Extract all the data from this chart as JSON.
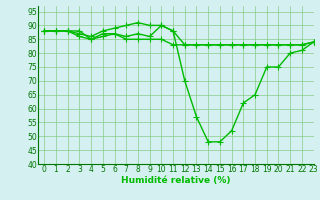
{
  "x": [
    0,
    1,
    2,
    3,
    4,
    5,
    6,
    7,
    8,
    9,
    10,
    11,
    12,
    13,
    14,
    15,
    16,
    17,
    18,
    19,
    20,
    21,
    22,
    23
  ],
  "line1": [
    88,
    88,
    88,
    88,
    85,
    87,
    87,
    85,
    85,
    85,
    85,
    83,
    83,
    83,
    83,
    83,
    83,
    83,
    83,
    83,
    83,
    83,
    83,
    84
  ],
  "line2": [
    88,
    88,
    88,
    87,
    86,
    88,
    89,
    90,
    91,
    90,
    90,
    88,
    70,
    57,
    48,
    48,
    52,
    62,
    65,
    75,
    75,
    80,
    81,
    84
  ],
  "line3": [
    88,
    88,
    88,
    86,
    85,
    86,
    87,
    86,
    87,
    86,
    90,
    88,
    83,
    83,
    83,
    83,
    83,
    83,
    83,
    83,
    83,
    83,
    83,
    84
  ],
  "xlabel": "Humidité relative (%)",
  "ylim": [
    40,
    97
  ],
  "xlim": [
    -0.5,
    23
  ],
  "yticks": [
    40,
    45,
    50,
    55,
    60,
    65,
    70,
    75,
    80,
    85,
    90,
    95
  ],
  "xticks": [
    0,
    1,
    2,
    3,
    4,
    5,
    6,
    7,
    8,
    9,
    10,
    11,
    12,
    13,
    14,
    15,
    16,
    17,
    18,
    19,
    20,
    21,
    22,
    23
  ],
  "line_color": "#00bb00",
  "bg_color": "#d4f0f0",
  "grid_color": "#88cc88",
  "marker": "+",
  "linewidth": 1.0,
  "markersize": 4,
  "tick_fontsize": 5.5,
  "xlabel_fontsize": 6.5
}
